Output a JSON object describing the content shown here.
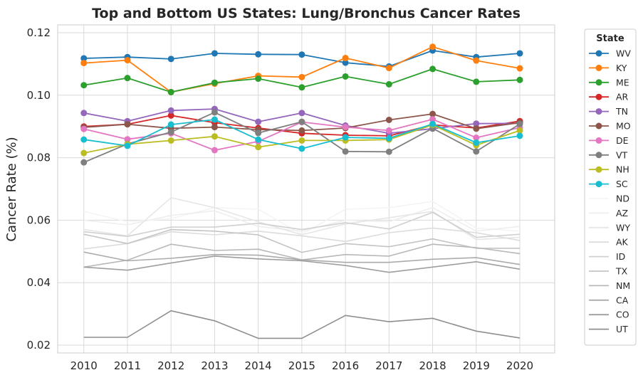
{
  "chart_data": {
    "type": "line",
    "title": "Top and Bottom US States: Lung/Bronchus Cancer Rates",
    "xlabel": "",
    "ylabel": "Cancer Rate (%)",
    "ylim": [
      0.0175,
      0.1225
    ],
    "xlim": [
      2009.4,
      2020.8
    ],
    "yticks": [
      "0.02",
      "0.04",
      "0.06",
      "0.08",
      "0.10",
      "0.12"
    ],
    "ytick_values": [
      0.02,
      0.04,
      0.06,
      0.08,
      0.1,
      0.12
    ],
    "x": [
      2010,
      2011,
      2012,
      2013,
      2014,
      2015,
      2016,
      2017,
      2018,
      2019,
      2020
    ],
    "xtick_labels": [
      "2010",
      "2011",
      "2012",
      "2013",
      "2014",
      "2015",
      "2016",
      "2017",
      "2018",
      "2019",
      "2020"
    ],
    "grid": true,
    "legend": {
      "title": "State",
      "placement": "outside-right"
    },
    "series": [
      {
        "name": "WV",
        "color": "#1f77b4",
        "marker": true,
        "values": [
          0.1118,
          0.1122,
          0.1116,
          0.1134,
          0.1131,
          0.113,
          0.1104,
          0.1092,
          0.1143,
          0.1122,
          0.1134
        ]
      },
      {
        "name": "KY",
        "color": "#ff7f0e",
        "marker": true,
        "values": [
          0.1103,
          0.1112,
          0.101,
          0.1037,
          0.1062,
          0.1058,
          0.1119,
          0.1087,
          0.1155,
          0.1111,
          0.1086
        ]
      },
      {
        "name": "ME",
        "color": "#2ca02c",
        "marker": true,
        "values": [
          0.1032,
          0.1055,
          0.101,
          0.104,
          0.1053,
          0.1025,
          0.106,
          0.1035,
          0.1084,
          0.1043,
          0.1049
        ]
      },
      {
        "name": "AR",
        "color": "#d62728",
        "marker": true,
        "values": [
          0.09,
          0.0907,
          0.0935,
          0.0912,
          0.0895,
          0.0878,
          0.0872,
          0.087,
          0.0905,
          0.0895,
          0.0917
        ]
      },
      {
        "name": "TN",
        "color": "#9467bd",
        "marker": true,
        "values": [
          0.0943,
          0.0917,
          0.0951,
          0.0956,
          0.0915,
          0.0943,
          0.0903,
          0.0878,
          0.0893,
          0.0909,
          0.091
        ]
      },
      {
        "name": "MO",
        "color": "#8c564b",
        "marker": true,
        "values": [
          0.0897,
          0.0907,
          0.0894,
          0.0898,
          0.089,
          0.0887,
          0.0895,
          0.0921,
          0.094,
          0.0893,
          0.0912
        ]
      },
      {
        "name": "DE",
        "color": "#e377c2",
        "marker": true,
        "values": [
          0.0892,
          0.0859,
          0.0878,
          0.0824,
          0.0852,
          0.0914,
          0.0898,
          0.0887,
          0.0923,
          0.0864,
          0.0896
        ]
      },
      {
        "name": "VT",
        "color": "#7f7f7f",
        "marker": true,
        "values": [
          0.0785,
          0.0844,
          0.0882,
          0.0945,
          0.0879,
          0.0915,
          0.082,
          0.0819,
          0.0894,
          0.082,
          0.0908
        ]
      },
      {
        "name": "NH",
        "color": "#bcbd22",
        "marker": true,
        "values": [
          0.0815,
          0.0843,
          0.0855,
          0.0868,
          0.0834,
          0.0855,
          0.0855,
          0.0858,
          0.0905,
          0.084,
          0.0887
        ]
      },
      {
        "name": "SC",
        "color": "#17becf",
        "marker": true,
        "values": [
          0.0858,
          0.0838,
          0.0906,
          0.0922,
          0.0858,
          0.0829,
          0.0865,
          0.0862,
          0.0908,
          0.0848,
          0.087
        ]
      },
      {
        "name": "ND",
        "color": "#f4f4f4",
        "marker": false,
        "values": [
          0.0628,
          0.0595,
          0.0605,
          0.064,
          0.0635,
          0.0555,
          0.0635,
          0.064,
          0.066,
          0.0575,
          0.0565
        ]
      },
      {
        "name": "AZ",
        "color": "#eeeeee",
        "marker": false,
        "values": [
          0.06,
          0.0585,
          0.0615,
          0.063,
          0.058,
          0.0565,
          0.06,
          0.0595,
          0.064,
          0.0565,
          0.058
        ]
      },
      {
        "name": "WY",
        "color": "#e6e6e6",
        "marker": false,
        "values": [
          0.057,
          0.055,
          0.0672,
          0.064,
          0.0595,
          0.0553,
          0.0588,
          0.0608,
          0.0628,
          0.0538,
          0.0545
        ]
      },
      {
        "name": "AK",
        "color": "#dcdcdc",
        "marker": false,
        "values": [
          0.0508,
          0.0525,
          0.0563,
          0.0553,
          0.0565,
          0.055,
          0.0532,
          0.056,
          0.0575,
          0.056,
          0.0535
        ]
      },
      {
        "name": "ID",
        "color": "#d0d0d0",
        "marker": false,
        "values": [
          0.0563,
          0.0548,
          0.0578,
          0.0578,
          0.059,
          0.057,
          0.0592,
          0.0572,
          0.0625,
          0.0545,
          0.0555
        ]
      },
      {
        "name": "TX",
        "color": "#c4c4c4",
        "marker": false,
        "values": [
          0.0555,
          0.0525,
          0.057,
          0.0565,
          0.0553,
          0.0497,
          0.0525,
          0.0515,
          0.054,
          0.051,
          0.051
        ]
      },
      {
        "name": "NM",
        "color": "#b8b8b8",
        "marker": false,
        "values": [
          0.045,
          0.0472,
          0.0523,
          0.0503,
          0.0507,
          0.0473,
          0.049,
          0.0485,
          0.0523,
          0.0512,
          0.0493
        ]
      },
      {
        "name": "CA",
        "color": "#ababab",
        "marker": false,
        "values": [
          0.0498,
          0.047,
          0.0478,
          0.049,
          0.0488,
          0.0473,
          0.0465,
          0.0465,
          0.0475,
          0.048,
          0.0458
        ]
      },
      {
        "name": "CO",
        "color": "#9e9e9e",
        "marker": false,
        "values": [
          0.045,
          0.044,
          0.0463,
          0.0485,
          0.0476,
          0.047,
          0.0455,
          0.0433,
          0.045,
          0.0467,
          0.0443
        ]
      },
      {
        "name": "UT",
        "color": "#8f8f8f",
        "marker": false,
        "values": [
          0.0225,
          0.0225,
          0.031,
          0.0278,
          0.0222,
          0.0222,
          0.0295,
          0.0275,
          0.0286,
          0.0245,
          0.0223
        ]
      }
    ]
  }
}
